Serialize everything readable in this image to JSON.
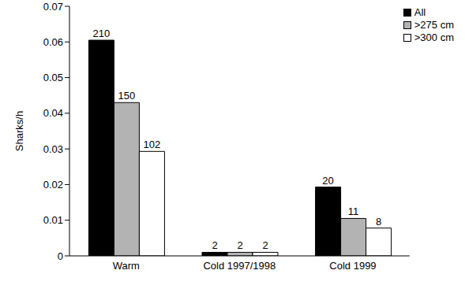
{
  "chart_data": {
    "type": "bar",
    "y_label": "Sharks/h",
    "categories": [
      "Warm",
      "Cold 1997/1998",
      "Cold 1999"
    ],
    "series": [
      {
        "name": "All",
        "color": "#000000",
        "values": [
          0.0605,
          0.001,
          0.0193
        ],
        "counts": [
          210,
          2,
          20
        ]
      },
      {
        "name": ">275 cm",
        "color": "#b3b3b3",
        "values": [
          0.043,
          0.001,
          0.0105
        ],
        "counts": [
          150,
          2,
          11
        ]
      },
      {
        "name": ">300 cm",
        "color": "#ffffff",
        "values": [
          0.0293,
          0.001,
          0.0078
        ],
        "counts": [
          102,
          2,
          8
        ]
      }
    ],
    "ylim": [
      0,
      0.07
    ],
    "yticks": [
      0,
      0.01,
      0.02,
      0.03,
      0.04,
      0.05,
      0.06,
      0.07
    ],
    "grid": false,
    "legend": "upper right"
  }
}
